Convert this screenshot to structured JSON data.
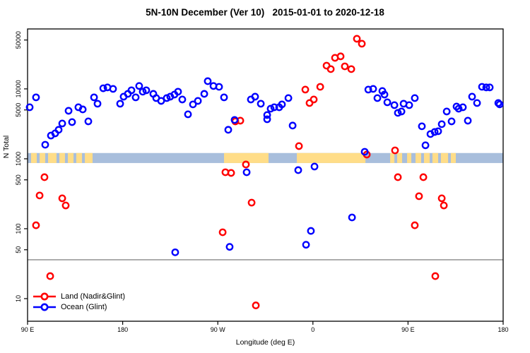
{
  "title": "5N-10N December (Ver 10)   2015-01-01 to 2020-12-18",
  "legend": {
    "items": [
      {
        "label": "Land (Nadir&Glint)",
        "color": "#ff0000"
      },
      {
        "label": "Ocean (Glint)",
        "color": "#0000ff"
      }
    ]
  },
  "chart_data": {
    "type": "scatter",
    "title": "5N-10N December (Ver 10)   2015-01-01 to 2020-12-18",
    "xlabel": "Longitude (deg E)",
    "ylabel": "N Total",
    "grid": false,
    "legend_position": "bottom-left-inside",
    "x_axis": {
      "min": 90,
      "max": 540,
      "note": "longitude axis wraps: 90E to 180 to 90W to 0 to 90E to 180",
      "ticks": [
        {
          "value": 90,
          "label": "90 E"
        },
        {
          "value": 180,
          "label": "180"
        },
        {
          "value": 270,
          "label": "90 W"
        },
        {
          "value": 360,
          "label": "0"
        },
        {
          "value": 450,
          "label": "90 E"
        },
        {
          "value": 540,
          "label": "180"
        }
      ]
    },
    "y_axis": {
      "scale": "log",
      "min": 4.75,
      "max": 72000,
      "ticks": [
        {
          "value": 10,
          "label": "10"
        },
        {
          "value": 50,
          "label": "50"
        },
        {
          "value": 100,
          "label": "100"
        },
        {
          "value": 500,
          "label": "500"
        },
        {
          "value": 1000,
          "label": "1000"
        },
        {
          "value": 5000,
          "label": "5000"
        },
        {
          "value": 10000,
          "label": "10000"
        },
        {
          "value": 50000,
          "label": "50000"
        }
      ]
    },
    "annotations": {
      "surface_type_band": {
        "description": "horizontal strip showing surface type along latitude band",
        "n_range": [
          870,
          1210
        ],
        "ocean_color": "#a8bedc",
        "land_color": "#ffdd88",
        "land_segments_lon": [
          [
            93.3,
            98.7
          ],
          [
            101.4,
            106.7
          ],
          [
            109.4,
            117.4
          ],
          [
            120.1,
            125.4
          ],
          [
            128.1,
            133.5
          ],
          [
            136.1,
            141.5
          ],
          [
            144.2,
            151.5
          ],
          [
            275.9,
            318.0
          ],
          [
            344.8,
            409.7
          ],
          [
            433.1,
            437.1
          ],
          [
            439.7,
            444.4
          ],
          [
            449.1,
            453.1
          ],
          [
            457.1,
            462.4
          ],
          [
            465.1,
            470.5
          ],
          [
            473.1,
            478.5
          ],
          [
            481.1,
            487.9
          ],
          [
            490.5,
            495.2
          ]
        ]
      },
      "threshold_line": {
        "y_value": 36,
        "color": "#888888"
      }
    },
    "series": [
      {
        "name": "Land (Nadir&Glint)",
        "color": "#ff0000",
        "marker": "open-circle",
        "points": [
          [
            98.0,
            112
          ],
          [
            101.4,
            299
          ],
          [
            106.0,
            546
          ],
          [
            111.4,
            21
          ],
          [
            122.8,
            272
          ],
          [
            126.1,
            215
          ],
          [
            274.6,
            89
          ],
          [
            277.2,
            642
          ],
          [
            282.6,
            628
          ],
          [
            286.6,
            3430
          ],
          [
            291.3,
            3510
          ],
          [
            296.6,
            830
          ],
          [
            302.0,
            236
          ],
          [
            306.0,
            8
          ],
          [
            346.8,
            1520
          ],
          [
            352.8,
            9770
          ],
          [
            356.8,
            6280
          ],
          [
            360.8,
            7050
          ],
          [
            366.9,
            10700
          ],
          [
            372.9,
            21500
          ],
          [
            376.9,
            19200
          ],
          [
            380.9,
            27800
          ],
          [
            386.2,
            29200
          ],
          [
            390.2,
            21000
          ],
          [
            396.3,
            19200
          ],
          [
            401.6,
            52100
          ],
          [
            406.3,
            44300
          ],
          [
            411.0,
            1150
          ],
          [
            437.7,
            1320
          ],
          [
            440.4,
            546
          ],
          [
            456.4,
            112
          ],
          [
            460.4,
            292
          ],
          [
            464.5,
            546
          ],
          [
            475.8,
            21
          ],
          [
            481.9,
            272
          ],
          [
            483.9,
            215
          ]
        ]
      },
      {
        "name": "Ocean (Glint)",
        "color": "#0000ff",
        "marker": "open-circle",
        "points": [
          [
            92.0,
            5460
          ],
          [
            98.0,
            7570
          ],
          [
            106.7,
            1590
          ],
          [
            112.1,
            2150
          ],
          [
            116.1,
            2310
          ],
          [
            119.4,
            2600
          ],
          [
            122.8,
            3200
          ],
          [
            128.8,
            4860
          ],
          [
            132.1,
            3350
          ],
          [
            138.1,
            5460
          ],
          [
            142.2,
            5090
          ],
          [
            147.5,
            3430
          ],
          [
            152.9,
            7570
          ],
          [
            156.2,
            6140
          ],
          [
            161.6,
            10200
          ],
          [
            165.6,
            10500
          ],
          [
            170.9,
            10000
          ],
          [
            177.6,
            6140
          ],
          [
            180.9,
            7740
          ],
          [
            184.9,
            8490
          ],
          [
            188.3,
            9550
          ],
          [
            192.3,
            7570
          ],
          [
            195.6,
            11000
          ],
          [
            199.0,
            9120
          ],
          [
            202.3,
            9550
          ],
          [
            209.0,
            8490
          ],
          [
            211.7,
            7390
          ],
          [
            216.4,
            6730
          ],
          [
            221.7,
            7390
          ],
          [
            225.0,
            7740
          ],
          [
            229.0,
            8300
          ],
          [
            232.4,
            9120
          ],
          [
            236.4,
            7050
          ],
          [
            241.8,
            4330
          ],
          [
            246.5,
            6000
          ],
          [
            251.2,
            6730
          ],
          [
            257.2,
            8490
          ],
          [
            260.5,
            12900
          ],
          [
            265.9,
            11000
          ],
          [
            271.2,
            10700
          ],
          [
            275.9,
            7570
          ],
          [
            279.9,
            2600
          ],
          [
            285.9,
            3600
          ],
          [
            301.3,
            7050
          ],
          [
            305.3,
            7740
          ],
          [
            310.7,
            6140
          ],
          [
            316.7,
            4230
          ],
          [
            316.7,
            3680
          ],
          [
            320.0,
            5210
          ],
          [
            323.4,
            5460
          ],
          [
            328.1,
            5460
          ],
          [
            330.7,
            6000
          ],
          [
            336.8,
            7390
          ],
          [
            340.8,
            2990
          ],
          [
            409.0,
            1260
          ],
          [
            412.4,
            9770
          ],
          [
            417.0,
            10000
          ],
          [
            421.0,
            7390
          ],
          [
            425.7,
            9330
          ],
          [
            427.7,
            8300
          ],
          [
            430.4,
            6430
          ],
          [
            437.1,
            5860
          ],
          [
            440.4,
            4540
          ],
          [
            443.8,
            4750
          ],
          [
            445.8,
            6140
          ],
          [
            451.1,
            5860
          ],
          [
            456.4,
            7390
          ],
          [
            463.1,
            2920
          ],
          [
            466.5,
            1560
          ],
          [
            471.2,
            2260
          ],
          [
            475.2,
            2420
          ],
          [
            478.5,
            2480
          ],
          [
            481.9,
            3130
          ],
          [
            486.6,
            4750
          ],
          [
            491.2,
            3430
          ],
          [
            495.9,
            5590
          ],
          [
            497.9,
            5210
          ],
          [
            501.9,
            5460
          ],
          [
            506.6,
            3510
          ],
          [
            510.6,
            7740
          ],
          [
            515.3,
            6280
          ],
          [
            520.0,
            10700
          ],
          [
            524.0,
            10500
          ],
          [
            527.3,
            10500
          ],
          [
            535.4,
            6280
          ],
          [
            536.7,
            6000
          ],
          [
            229.7,
            46
          ],
          [
            281.2,
            55
          ],
          [
            297.3,
            642
          ],
          [
            346.1,
            689
          ],
          [
            353.5,
            59
          ],
          [
            358.1,
            93
          ],
          [
            361.5,
            775
          ],
          [
            397.0,
            145
          ]
        ]
      }
    ]
  }
}
